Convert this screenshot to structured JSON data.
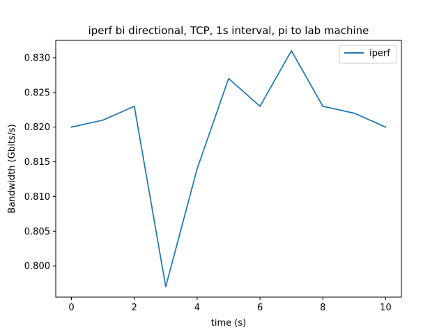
{
  "chart_data": {
    "type": "line",
    "title": "iperf bi directional, TCP, 1s interval, pi to lab machine",
    "xlabel": "time (s)",
    "ylabel": "Bandwidth (Gbits/s)",
    "xlim": [
      -0.5,
      10.5
    ],
    "ylim": [
      0.7955,
      0.8325
    ],
    "xticks": [
      0,
      2,
      4,
      6,
      8,
      10
    ],
    "yticks": [
      0.8,
      0.805,
      0.81,
      0.815,
      0.82,
      0.825,
      0.83
    ],
    "grid": false,
    "legend_position": "top-right",
    "series": [
      {
        "name": "iperf",
        "color": "#1f77b4",
        "x": [
          0,
          1,
          2,
          3,
          4,
          5,
          6,
          7,
          8,
          9,
          10
        ],
        "y": [
          0.82,
          0.821,
          0.823,
          0.797,
          0.814,
          0.827,
          0.823,
          0.831,
          0.823,
          0.822,
          0.82
        ]
      }
    ]
  }
}
